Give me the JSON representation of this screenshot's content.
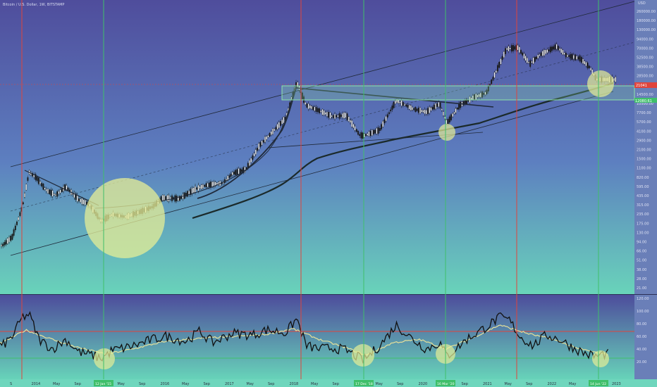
{
  "header": {
    "symbol_title": "Bitcoin / U.S. Dollar, 1W, BITSTAMP"
  },
  "price_axis": {
    "currency": "USD",
    "ticks": [
      "260000.00",
      "180000.00",
      "130000.00",
      "94000.00",
      "70000.00",
      "52500.00",
      "38500.00",
      "28500.00",
      "21000.00",
      "14500.00",
      "10500.00",
      "7700.00",
      "5700.00",
      "4100.00",
      "2900.00",
      "2100.00",
      "1500.00",
      "1100.00",
      "820.00",
      "595.00",
      "435.00",
      "315.00",
      "235.00",
      "175.00",
      "130.00",
      "94.00",
      "66.00",
      "51.00",
      "38.00",
      "28.00",
      "21.00"
    ],
    "last_price_label": "21041",
    "level_label": "12080.61"
  },
  "rsi_axis": {
    "ticks": [
      "120.00",
      "100.00",
      "80.00",
      "60.00",
      "40.00",
      "20.00"
    ]
  },
  "time_axis": {
    "labels": [
      "S",
      "2014",
      "May",
      "Sep",
      "2015",
      "May",
      "Sep",
      "2016",
      "May",
      "Sep",
      "2017",
      "May",
      "Sep",
      "2018",
      "May",
      "Sep",
      "2019",
      "May",
      "Sep",
      "2020",
      "May",
      "Sep",
      "2021",
      "May",
      "Sep",
      "2022",
      "May",
      "Sep",
      "2023"
    ],
    "highlight_labels": [
      "12 Jan '15",
      "17 Dec '18",
      "16 Mar '20",
      "14 Jun '22"
    ]
  },
  "colors": {
    "background_top": "#4f4d9c",
    "background_bottom": "#67d6b9",
    "candle": "#1a1a1a",
    "vline_red": "#e0443c",
    "vline_green": "#3fbf6a",
    "circle": "#e6ee95",
    "box_fill": "#8ee6a8",
    "rsi_line": "#111111",
    "rsi_ma": "#e5e09a"
  },
  "chart_data": [
    {
      "type": "line",
      "title": "Bitcoin / U.S. Dollar, 1W, BITSTAMP",
      "scale": "log",
      "ylabel": "USD",
      "ylim": [
        21,
        260000
      ],
      "x": [
        2013.55,
        2013.7,
        2013.85,
        2013.95,
        2014.05,
        2014.2,
        2014.35,
        2014.5,
        2014.7,
        2014.85,
        2015.03,
        2015.2,
        2015.4,
        2015.6,
        2015.8,
        2015.95,
        2016.2,
        2016.45,
        2016.6,
        2016.85,
        2017.0,
        2017.2,
        2017.4,
        2017.6,
        2017.8,
        2017.96,
        2018.1,
        2018.3,
        2018.5,
        2018.7,
        2018.9,
        2018.96,
        2019.2,
        2019.45,
        2019.7,
        2019.9,
        2020.1,
        2020.21,
        2020.4,
        2020.6,
        2020.8,
        2020.96,
        2021.1,
        2021.27,
        2021.45,
        2021.6,
        2021.85,
        2022.0,
        2022.2,
        2022.35,
        2022.45
      ],
      "y": [
        90,
        120,
        320,
        1000,
        850,
        560,
        470,
        620,
        400,
        350,
        200,
        250,
        230,
        270,
        320,
        430,
        420,
        580,
        650,
        700,
        960,
        1100,
        2400,
        3800,
        6000,
        19000,
        9000,
        7500,
        6200,
        6500,
        3400,
        3300,
        4000,
        10500,
        8000,
        7200,
        9500,
        5000,
        9000,
        11500,
        13500,
        29000,
        57000,
        60000,
        35000,
        47000,
        62000,
        46000,
        42000,
        31000,
        21000
      ]
    },
    {
      "type": "line",
      "title": "",
      "ylim": [
        0,
        120
      ],
      "series": [
        {
          "name": "",
          "x": [
            2013.55,
            2013.7,
            2013.85,
            2013.95,
            2014.1,
            2014.3,
            2014.5,
            2014.7,
            2014.9,
            2015.03,
            2015.2,
            2015.4,
            2015.6,
            2015.8,
            2016.0,
            2016.3,
            2016.5,
            2016.7,
            2017.0,
            2017.3,
            2017.5,
            2017.8,
            2017.96,
            2018.1,
            2018.3,
            2018.5,
            2018.7,
            2018.96,
            2019.2,
            2019.45,
            2019.7,
            2019.9,
            2020.1,
            2020.21,
            2020.5,
            2020.8,
            2021.0,
            2021.15,
            2021.3,
            2021.5,
            2021.7,
            2021.9,
            2022.1,
            2022.3,
            2022.45,
            2022.55
          ],
          "values": [
            45,
            60,
            90,
            95,
            55,
            40,
            55,
            35,
            30,
            25,
            38,
            42,
            48,
            55,
            60,
            52,
            68,
            50,
            65,
            62,
            70,
            66,
            88,
            45,
            40,
            42,
            38,
            22,
            45,
            78,
            55,
            40,
            50,
            28,
            55,
            75,
            90,
            85,
            60,
            45,
            62,
            55,
            42,
            32,
            28,
            32
          ]
        },
        {
          "name": "",
          "x": [
            2013.55,
            2013.9,
            2014.3,
            2014.7,
            2015.1,
            2015.5,
            2015.9,
            2016.3,
            2016.7,
            2017.1,
            2017.5,
            2017.9,
            2018.3,
            2018.7,
            2019.0,
            2019.4,
            2019.8,
            2020.2,
            2020.6,
            2021.0,
            2021.4,
            2021.8,
            2022.2,
            2022.55
          ],
          "values": [
            50,
            70,
            55,
            42,
            32,
            40,
            50,
            55,
            58,
            60,
            63,
            72,
            55,
            42,
            30,
            50,
            55,
            40,
            58,
            78,
            65,
            55,
            40,
            32
          ]
        }
      ],
      "levels": [
        70,
        30
      ]
    }
  ]
}
